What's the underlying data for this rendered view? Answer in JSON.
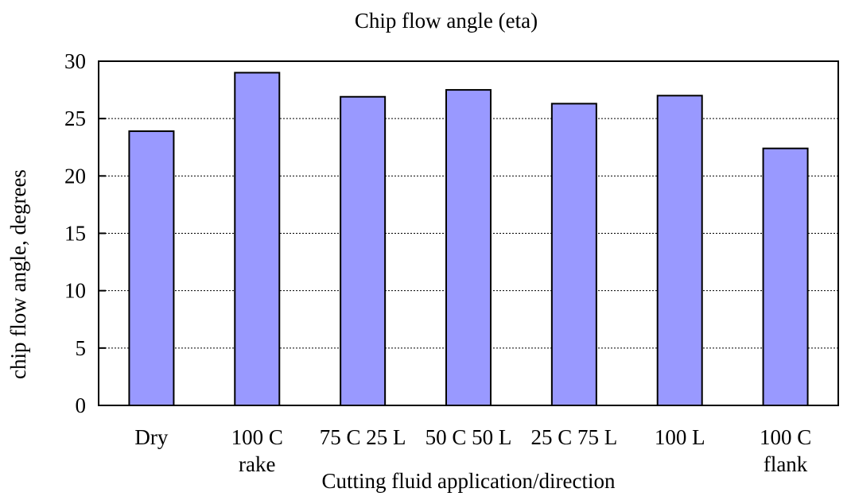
{
  "chart_data": {
    "type": "bar",
    "title": "Chip flow angle (eta)",
    "xlabel": "Cutting fluid application/direction",
    "ylabel": "chip flow angle, degrees",
    "categories": [
      [
        "Dry"
      ],
      [
        "100 C",
        "rake"
      ],
      [
        "75 C 25 L"
      ],
      [
        "50 C 50 L"
      ],
      [
        "25 C 75 L"
      ],
      [
        "100 L"
      ],
      [
        "100 C",
        "flank"
      ]
    ],
    "values": [
      23.9,
      29.0,
      26.9,
      27.5,
      26.3,
      27.0,
      22.4
    ],
    "ylim": [
      0,
      30
    ],
    "yticks": [
      0,
      5,
      10,
      15,
      20,
      25,
      30
    ],
    "grid": true,
    "legend": "none",
    "colors": {
      "bar_fill": "#9999ff",
      "bar_stroke": "#000000",
      "grid": "#000000"
    }
  }
}
